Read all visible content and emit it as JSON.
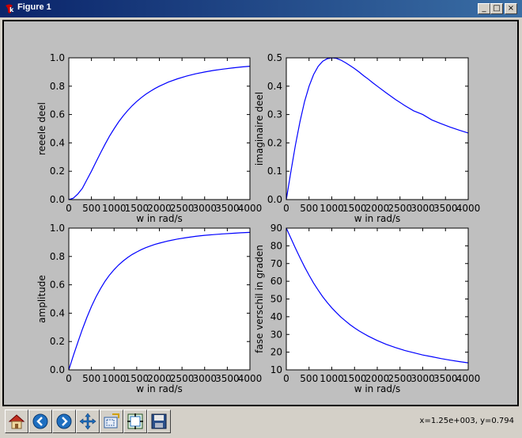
{
  "window": {
    "title": "Figure 1",
    "minimize_glyph": "_",
    "maximize_glyph": "□",
    "close_glyph": "×"
  },
  "toolbar": {
    "buttons": [
      {
        "name": "home-button",
        "icon": "home-icon"
      },
      {
        "name": "back-button",
        "icon": "left-arrow-icon"
      },
      {
        "name": "forward-button",
        "icon": "right-arrow-icon"
      },
      {
        "name": "pan-button",
        "icon": "move-arrows-icon"
      },
      {
        "name": "zoom-button",
        "icon": "zoom-rect-icon"
      },
      {
        "name": "subplots-button",
        "icon": "subplots-config-icon"
      },
      {
        "name": "save-button",
        "icon": "floppy-disk-icon"
      }
    ],
    "coordinates": "x=1.25e+003, y=0.794"
  },
  "colors": {
    "line": "#0000ff",
    "figure_bg": "#bfbfbf",
    "axes_bg": "#ffffff"
  },
  "chart_data": [
    {
      "type": "line",
      "xlabel": "w in rad/s",
      "ylabel": "reeele deel",
      "xlim": [
        0,
        4000
      ],
      "ylim": [
        0,
        1.0
      ],
      "xticks": [
        "0",
        "500",
        "1000",
        "1500",
        "2000",
        "2500",
        "3000",
        "3500",
        "4000"
      ],
      "yticks": [
        "0.0",
        "0.2",
        "0.4",
        "0.6",
        "0.8",
        "1.0"
      ],
      "x": [
        0,
        100,
        200,
        300,
        400,
        500,
        600,
        700,
        800,
        900,
        1000,
        1100,
        1200,
        1300,
        1400,
        1500,
        1600,
        1700,
        1800,
        1900,
        2000,
        2200,
        2400,
        2600,
        2800,
        3000,
        3200,
        3400,
        3600,
        3800,
        4000
      ],
      "y": [
        0.0,
        0.01,
        0.04,
        0.08,
        0.14,
        0.2,
        0.265,
        0.329,
        0.39,
        0.448,
        0.5,
        0.548,
        0.59,
        0.628,
        0.662,
        0.692,
        0.719,
        0.743,
        0.764,
        0.783,
        0.8,
        0.829,
        0.852,
        0.871,
        0.887,
        0.9,
        0.911,
        0.92,
        0.928,
        0.935,
        0.941
      ]
    },
    {
      "type": "line",
      "xlabel": "w in rad/s",
      "ylabel": "imaginaire deel",
      "xlim": [
        0,
        4000
      ],
      "ylim": [
        0,
        0.5
      ],
      "xticks": [
        "0",
        "500",
        "1000",
        "1500",
        "2000",
        "2500",
        "3000",
        "3500",
        "4000"
      ],
      "yticks": [
        "0.0",
        "0.1",
        "0.2",
        "0.3",
        "0.4",
        "0.5"
      ],
      "x": [
        0,
        100,
        200,
        300,
        400,
        500,
        600,
        700,
        800,
        900,
        1000,
        1100,
        1200,
        1300,
        1400,
        1500,
        1600,
        1700,
        1800,
        1900,
        2000,
        2200,
        2400,
        2600,
        2800,
        3000,
        3200,
        3400,
        3600,
        3800,
        4000
      ],
      "y": [
        0.0,
        0.099,
        0.192,
        0.275,
        0.345,
        0.4,
        0.441,
        0.47,
        0.488,
        0.497,
        0.5,
        0.498,
        0.492,
        0.483,
        0.473,
        0.462,
        0.45,
        0.437,
        0.425,
        0.412,
        0.4,
        0.376,
        0.353,
        0.332,
        0.313,
        0.3,
        0.281,
        0.268,
        0.256,
        0.245,
        0.235
      ]
    },
    {
      "type": "line",
      "xlabel": "w in rad/s",
      "ylabel": "amplitude",
      "xlim": [
        0,
        4000
      ],
      "ylim": [
        0,
        1.0
      ],
      "xticks": [
        "0",
        "500",
        "1000",
        "1500",
        "2000",
        "2500",
        "3000",
        "3500",
        "4000"
      ],
      "yticks": [
        "0.0",
        "0.2",
        "0.4",
        "0.6",
        "0.8",
        "1.0"
      ],
      "x": [
        0,
        100,
        200,
        300,
        400,
        500,
        600,
        700,
        800,
        900,
        1000,
        1100,
        1200,
        1300,
        1400,
        1500,
        1600,
        1700,
        1800,
        1900,
        2000,
        2200,
        2400,
        2600,
        2800,
        3000,
        3200,
        3400,
        3600,
        3800,
        4000
      ],
      "y": [
        0.0,
        0.1,
        0.196,
        0.287,
        0.371,
        0.447,
        0.514,
        0.573,
        0.625,
        0.669,
        0.707,
        0.74,
        0.768,
        0.793,
        0.814,
        0.832,
        0.848,
        0.862,
        0.874,
        0.885,
        0.894,
        0.91,
        0.923,
        0.933,
        0.942,
        0.949,
        0.954,
        0.959,
        0.963,
        0.967,
        0.97
      ]
    },
    {
      "type": "line",
      "xlabel": "w in rad/s",
      "ylabel": "fase verschil in graden",
      "xlim": [
        0,
        4000
      ],
      "ylim": [
        10,
        90
      ],
      "xticks": [
        "0",
        "500",
        "1000",
        "1500",
        "2000",
        "2500",
        "3000",
        "3500",
        "4000"
      ],
      "yticks": [
        "10",
        "20",
        "30",
        "40",
        "50",
        "60",
        "70",
        "80",
        "90"
      ],
      "x": [
        0,
        100,
        200,
        300,
        400,
        500,
        600,
        700,
        800,
        900,
        1000,
        1100,
        1200,
        1300,
        1400,
        1500,
        1600,
        1700,
        1800,
        1900,
        2000,
        2200,
        2400,
        2600,
        2800,
        3000,
        3200,
        3400,
        3600,
        3800,
        4000
      ],
      "y": [
        90,
        84.3,
        78.7,
        73.3,
        68.2,
        63.4,
        59.0,
        55.0,
        51.3,
        48.0,
        45.0,
        42.3,
        39.8,
        37.6,
        35.5,
        33.7,
        32.0,
        30.5,
        29.1,
        27.8,
        26.6,
        24.4,
        22.6,
        21.0,
        19.7,
        18.4,
        17.4,
        16.4,
        15.5,
        14.7,
        14.0
      ]
    }
  ]
}
